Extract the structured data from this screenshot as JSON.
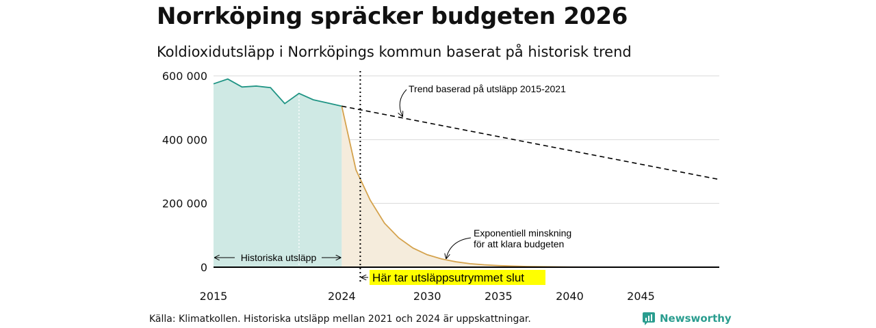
{
  "title": "Norrköping spräcker budgeten 2026",
  "subtitle": "Koldioxidutsläpp i Norrköpings kommun baserat på historisk trend",
  "source": "Källa: Klimatkollen. Historiska utsläpp mellan 2021 och 2024 är uppskattningar.",
  "brand": {
    "name": "Newsworthy",
    "icon": "newsworthy-logo-icon"
  },
  "colors": {
    "historical_line": "#1f9484",
    "historical_fill": "#cfe9e4",
    "budget_line": "#d4a24c",
    "budget_fill": "#f5ecdc",
    "grid": "#d9d9d9",
    "highlight": "#ffff00"
  },
  "chart_data": {
    "type": "line",
    "xlim": [
      2015,
      2050.5
    ],
    "ylim": [
      0,
      600000
    ],
    "yticks": [
      0,
      200000,
      400000,
      600000
    ],
    "ytick_labels": [
      "0",
      "200 000",
      "400 000",
      "600 000"
    ],
    "xticks": [
      2015,
      2024,
      2030,
      2035,
      2040,
      2045
    ],
    "xtick_labels": [
      "2015",
      "2024",
      "2030",
      "2035",
      "2040",
      "2045"
    ],
    "series": [
      {
        "name": "Historiska utsläpp",
        "x": [
          2015,
          2016,
          2017,
          2018,
          2019,
          2020,
          2021,
          2022,
          2023,
          2024
        ],
        "values": [
          575000,
          590000,
          565000,
          568000,
          563000,
          513000,
          545000,
          525000,
          515000,
          505000
        ]
      },
      {
        "name": "Trend baserad på utsläpp 2015-2021",
        "x": [
          2024,
          2050.5
        ],
        "values": [
          505000,
          275000
        ]
      },
      {
        "name": "Exponentiell minskning för att klara budgeten",
        "x": [
          2024,
          2025,
          2026,
          2027,
          2028,
          2029,
          2030,
          2031,
          2032,
          2033,
          2034,
          2035,
          2036,
          2037,
          2038,
          2039,
          2040,
          2042,
          2045,
          2050.5
        ],
        "values": [
          505000,
          305000,
          210000,
          138000,
          92000,
          60000,
          39000,
          26000,
          17000,
          11000,
          7500,
          5000,
          3300,
          2200,
          1500,
          1000,
          600,
          250,
          80,
          10
        ]
      }
    ],
    "budget_exceeded_x": 2025.3,
    "annotations": {
      "historical_range": "Historiska utsläpp",
      "trend": "Trend baserad på utsläpp 2015-2021",
      "exp_line1": "Exponentiell minskning",
      "exp_line2": "för att klara budgeten",
      "budget_end": "Här tar utsläppsutrymmet slut"
    }
  }
}
